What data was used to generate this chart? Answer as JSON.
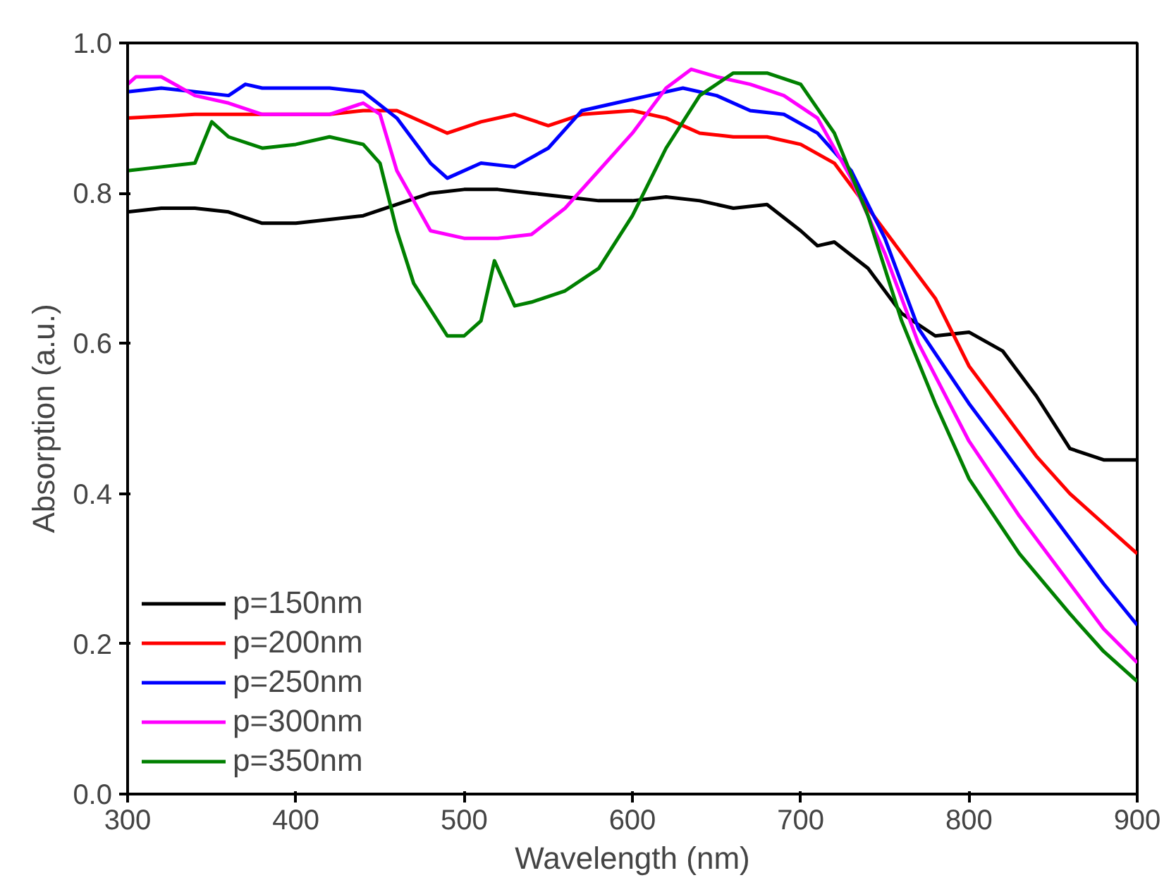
{
  "chart_data": {
    "type": "line",
    "xlabel": "Wavelength (nm)",
    "ylabel": "Absorption (a.u.)",
    "xlim": [
      300,
      900
    ],
    "ylim": [
      0,
      1
    ],
    "xticks": [
      300,
      400,
      500,
      600,
      700,
      800,
      900
    ],
    "yticks": [
      {
        "value": 0,
        "label": "0.0"
      },
      {
        "value": 0.2,
        "label": "0.2"
      },
      {
        "value": 0.4,
        "label": "0.4"
      },
      {
        "value": 0.6,
        "label": "0.6"
      },
      {
        "value": 0.8,
        "label": "0.8"
      },
      {
        "value": 1,
        "label": "1.0"
      }
    ],
    "grid": false,
    "legend": "bottom left",
    "line_style": "solid",
    "marker": "none",
    "series": [
      {
        "name": "p=150nm",
        "color": "#000000",
        "x": [
          300,
          320,
          340,
          360,
          380,
          400,
          420,
          440,
          460,
          480,
          500,
          520,
          540,
          560,
          580,
          600,
          620,
          640,
          660,
          680,
          700,
          710,
          720,
          740,
          760,
          780,
          800,
          820,
          840,
          860,
          880,
          900
        ],
        "values": [
          0.775,
          0.78,
          0.78,
          0.775,
          0.76,
          0.76,
          0.765,
          0.77,
          0.785,
          0.8,
          0.805,
          0.805,
          0.8,
          0.795,
          0.79,
          0.79,
          0.795,
          0.79,
          0.78,
          0.785,
          0.75,
          0.73,
          0.735,
          0.7,
          0.64,
          0.61,
          0.615,
          0.59,
          0.53,
          0.46,
          0.445,
          0.445
        ]
      },
      {
        "name": "p=200nm",
        "color": "#ff0000",
        "x": [
          300,
          340,
          380,
          420,
          440,
          460,
          480,
          490,
          510,
          530,
          550,
          570,
          600,
          620,
          640,
          660,
          680,
          700,
          720,
          740,
          760,
          780,
          800,
          820,
          840,
          860,
          880,
          900
        ],
        "values": [
          0.9,
          0.905,
          0.905,
          0.905,
          0.91,
          0.91,
          0.89,
          0.88,
          0.895,
          0.905,
          0.89,
          0.905,
          0.91,
          0.9,
          0.88,
          0.875,
          0.875,
          0.865,
          0.84,
          0.78,
          0.72,
          0.66,
          0.57,
          0.51,
          0.45,
          0.4,
          0.36,
          0.32
        ]
      },
      {
        "name": "p=250nm",
        "color": "#0000ff",
        "x": [
          300,
          320,
          340,
          360,
          370,
          380,
          400,
          420,
          440,
          460,
          480,
          490,
          510,
          530,
          550,
          570,
          590,
          610,
          630,
          650,
          670,
          690,
          710,
          730,
          750,
          770,
          800,
          830,
          860,
          880,
          900
        ],
        "values": [
          0.935,
          0.94,
          0.935,
          0.93,
          0.945,
          0.94,
          0.94,
          0.94,
          0.935,
          0.9,
          0.84,
          0.82,
          0.84,
          0.835,
          0.86,
          0.91,
          0.92,
          0.93,
          0.94,
          0.93,
          0.91,
          0.905,
          0.88,
          0.83,
          0.74,
          0.62,
          0.52,
          0.43,
          0.34,
          0.28,
          0.225
        ]
      },
      {
        "name": "p=300nm",
        "color": "#ff00ff",
        "x": [
          300,
          305,
          320,
          340,
          360,
          380,
          400,
          420,
          440,
          450,
          460,
          480,
          500,
          520,
          540,
          560,
          580,
          600,
          620,
          635,
          650,
          670,
          690,
          710,
          730,
          750,
          770,
          800,
          830,
          860,
          880,
          900
        ],
        "values": [
          0.945,
          0.955,
          0.955,
          0.93,
          0.92,
          0.905,
          0.905,
          0.905,
          0.92,
          0.905,
          0.83,
          0.75,
          0.74,
          0.74,
          0.745,
          0.78,
          0.83,
          0.88,
          0.94,
          0.965,
          0.955,
          0.945,
          0.93,
          0.9,
          0.82,
          0.72,
          0.6,
          0.47,
          0.37,
          0.28,
          0.22,
          0.175
        ]
      },
      {
        "name": "p=350nm",
        "color": "#008000",
        "x": [
          300,
          320,
          340,
          350,
          360,
          380,
          400,
          420,
          440,
          450,
          460,
          470,
          490,
          500,
          510,
          518,
          525,
          530,
          540,
          560,
          580,
          600,
          620,
          640,
          660,
          680,
          700,
          720,
          740,
          760,
          780,
          800,
          830,
          860,
          880,
          900
        ],
        "values": [
          0.83,
          0.835,
          0.84,
          0.895,
          0.875,
          0.86,
          0.865,
          0.875,
          0.865,
          0.84,
          0.75,
          0.68,
          0.61,
          0.61,
          0.63,
          0.71,
          0.675,
          0.65,
          0.655,
          0.67,
          0.7,
          0.77,
          0.86,
          0.93,
          0.96,
          0.96,
          0.945,
          0.88,
          0.77,
          0.63,
          0.52,
          0.42,
          0.32,
          0.24,
          0.19,
          0.15
        ]
      }
    ]
  }
}
